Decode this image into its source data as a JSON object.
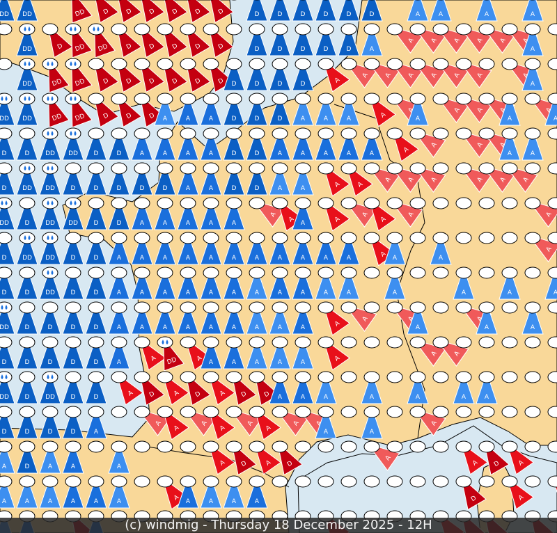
{
  "footer": {
    "text": "(c) windmig - Thursday 18 December 2025 - 12H"
  },
  "colors": {
    "sea": "#d8e8f2",
    "land": "#f9d899",
    "coast": "#000000"
  },
  "glyph_types": {
    ".": {
      "label": "",
      "color": null,
      "rain": false
    },
    "a": {
      "label": "A",
      "color": "#3d8ff0",
      "rain": false
    },
    "b": {
      "label": "A",
      "color": "#1a6fdc",
      "rain": false
    },
    "d": {
      "label": "D",
      "color": "#0b5fc4",
      "rain": false
    },
    "e": {
      "label": "DD",
      "color": "#0b5fc4",
      "rain": true
    },
    "r": {
      "label": "A",
      "color": "#f05a5a",
      "rain": false
    },
    "s": {
      "label": "A",
      "color": "#e8101a",
      "rain": false
    },
    "R": {
      "label": "D",
      "color": "#c40010",
      "rain": false
    },
    "S": {
      "label": "DD",
      "color": "#c40010",
      "rain": true
    }
  },
  "grid": [
    "ee.SRRRRRR.dddddd.aa.a.a.",
    ".eRSSRRRRR.dddddarrrrrrar",
    ".eSSRRRRRRddddsrrrrrr.ra.",
    "eeSSRRRabbdddaaasrarrrara",
    "ddeeddbbbbddbbbbbsr.rraa.",
    "deedddddbbddaassrrr.rrr.r",
    "edeeddbbbbbrsbsrsr.....r.",
    "deeddbbbbbbbbbbbsa.a...r.",
    "ddeddbbbbbbabbaa.a..a.a.a",
    "eddddbbbbbbaabsr.ra.ra.a.",
    "dddddbsSsbbaaas...rr.....",
    "ededdsRsRsRRbba.a.a.aa...",
    "ddddb.rsrsrsrra.a.r......",
    "adab.a...sRsR...r...sRs.r",
    "aaabba.sbaab........R.s.s",
    "ab.Rb.........s....sRR.R."
  ]
}
